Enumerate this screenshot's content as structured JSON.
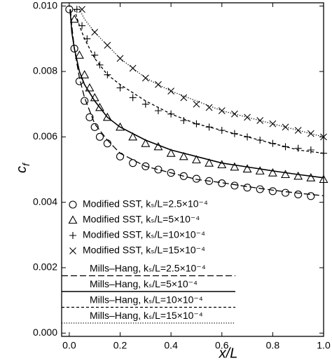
{
  "chart_data": {
    "type": "scatter_line",
    "x_label": "x/L",
    "y_label": {
      "text": "c",
      "subscript": "f"
    },
    "xlim": [
      -0.03,
      1.0
    ],
    "ylim": [
      -0.0001,
      0.0101
    ],
    "xticks": [
      {
        "value": 0,
        "label": "0.0"
      },
      0.2,
      0.4,
      0.6,
      0.8,
      {
        "value": 1,
        "label": "1.0"
      }
    ],
    "yticks": [
      {
        "value": 0,
        "label": "0.000"
      },
      0.002,
      0.004,
      0.006,
      0.008,
      {
        "value": 0.01,
        "label": "0.010"
      }
    ],
    "legend": "lower left",
    "series": [
      {
        "name": "Modified SST, kₛ/L=2.5×10⁻⁴",
        "kind": "scatter",
        "marker": "circle",
        "color": "#000000",
        "x": [
          0.0,
          0.02,
          0.04,
          0.06,
          0.08,
          0.1,
          0.12,
          0.15,
          0.2,
          0.25,
          0.3,
          0.35,
          0.4,
          0.45,
          0.5,
          0.55,
          0.6,
          0.65,
          0.7,
          0.75,
          0.8,
          0.85,
          0.9,
          0.95
        ],
        "values": [
          0.0099,
          0.0087,
          0.0077,
          0.0071,
          0.0066,
          0.0063,
          0.006,
          0.0058,
          0.0054,
          0.0052,
          0.0051,
          0.005,
          0.0049,
          0.0048,
          0.00472,
          0.00465,
          0.00458,
          0.00451,
          0.00445,
          0.0044,
          0.00434,
          0.00429,
          0.00424,
          0.00419
        ]
      },
      {
        "name": "Modified SST, kₛ/L=5×10⁻⁴",
        "kind": "scatter",
        "marker": "triangle",
        "color": "#000000",
        "x": [
          0.02,
          0.04,
          0.06,
          0.08,
          0.1,
          0.12,
          0.15,
          0.2,
          0.25,
          0.3,
          0.35,
          0.4,
          0.45,
          0.5,
          0.55,
          0.6,
          0.65,
          0.7,
          0.75,
          0.8,
          0.85,
          0.9,
          0.95,
          1.0
        ],
        "values": [
          0.0096,
          0.0085,
          0.0079,
          0.0075,
          0.0072,
          0.0069,
          0.0066,
          0.0063,
          0.006,
          0.0058,
          0.0057,
          0.0055,
          0.0054,
          0.0053,
          0.0052,
          0.00515,
          0.00508,
          0.00502,
          0.00496,
          0.0049,
          0.00485,
          0.0048,
          0.00475,
          0.0047
        ]
      },
      {
        "name": "Modified SST, kₛ/L=10×10⁻⁴",
        "kind": "scatter",
        "marker": "plus",
        "color": "#000000",
        "x": [
          0.03,
          0.05,
          0.07,
          0.1,
          0.12,
          0.15,
          0.2,
          0.25,
          0.3,
          0.35,
          0.4,
          0.45,
          0.5,
          0.55,
          0.6,
          0.65,
          0.7,
          0.75,
          0.8,
          0.85,
          0.9,
          0.95,
          1.0
        ],
        "values": [
          0.0099,
          0.0094,
          0.009,
          0.0085,
          0.0082,
          0.0079,
          0.0075,
          0.0072,
          0.007,
          0.0068,
          0.0067,
          0.0065,
          0.0064,
          0.0063,
          0.0062,
          0.0061,
          0.006,
          0.0059,
          0.0058,
          0.0057,
          0.00565,
          0.0056,
          0.0055
        ]
      },
      {
        "name": "Modified SST, kₛ/L=15×10⁻⁴",
        "kind": "scatter",
        "marker": "cross",
        "color": "#000000",
        "x": [
          0.05,
          0.1,
          0.15,
          0.2,
          0.25,
          0.3,
          0.35,
          0.4,
          0.45,
          0.5,
          0.55,
          0.6,
          0.65,
          0.7,
          0.75,
          0.8,
          0.85,
          0.9,
          0.95,
          1.0
        ],
        "values": [
          0.0099,
          0.0092,
          0.0088,
          0.0084,
          0.0081,
          0.0078,
          0.0076,
          0.0074,
          0.0072,
          0.007,
          0.0069,
          0.0068,
          0.0067,
          0.0066,
          0.0065,
          0.0064,
          0.0063,
          0.0062,
          0.0061,
          0.006
        ]
      },
      {
        "name": "Mills–Hang, kₛ/L=2.5×10⁻⁴",
        "kind": "line",
        "dash": "long",
        "color": "#000000",
        "x": [
          0.005,
          0.01,
          0.02,
          0.04,
          0.06,
          0.1,
          0.15,
          0.2,
          0.3,
          0.4,
          0.5,
          0.6,
          0.7,
          0.8,
          0.9,
          1.0
        ],
        "values": [
          0.0099,
          0.0094,
          0.0087,
          0.0078,
          0.0072,
          0.0064,
          0.0059,
          0.0055,
          0.0051,
          0.0049,
          0.0047,
          0.0046,
          0.00448,
          0.00437,
          0.00428,
          0.0042
        ]
      },
      {
        "name": "Mills–Hang, kₛ/L=5×10⁻⁴",
        "kind": "line",
        "dash": "solid",
        "color": "#000000",
        "x": [
          0.003,
          0.01,
          0.02,
          0.04,
          0.06,
          0.1,
          0.15,
          0.2,
          0.3,
          0.4,
          0.5,
          0.6,
          0.7,
          0.8,
          0.9,
          1.0
        ],
        "values": [
          0.0099,
          0.0092,
          0.0087,
          0.008,
          0.0076,
          0.0071,
          0.0066,
          0.0063,
          0.0059,
          0.0056,
          0.0054,
          0.0052,
          0.00508,
          0.00496,
          0.00485,
          0.00475
        ]
      },
      {
        "name": "Mills–Hang, kₛ/L=10×10⁻⁴",
        "kind": "line",
        "dash": "short",
        "color": "#000000",
        "x": [
          0.02,
          0.04,
          0.06,
          0.1,
          0.15,
          0.2,
          0.3,
          0.4,
          0.5,
          0.6,
          0.7,
          0.8,
          0.9,
          1.0
        ],
        "values": [
          0.0099,
          0.0094,
          0.009,
          0.0084,
          0.0079,
          0.0076,
          0.0071,
          0.0067,
          0.0064,
          0.0062,
          0.006,
          0.0058,
          0.0056,
          0.0055
        ]
      },
      {
        "name": "Mills–Hang, kₛ/L=15×10⁻⁴",
        "kind": "line",
        "dash": "dotted",
        "color": "#000000",
        "x": [
          0.04,
          0.06,
          0.1,
          0.15,
          0.2,
          0.3,
          0.4,
          0.5,
          0.6,
          0.7,
          0.8,
          0.9,
          1.0
        ],
        "values": [
          0.0099,
          0.0096,
          0.0092,
          0.0088,
          0.0084,
          0.0078,
          0.0074,
          0.0071,
          0.0068,
          0.0066,
          0.0064,
          0.0062,
          0.006
        ]
      }
    ]
  }
}
